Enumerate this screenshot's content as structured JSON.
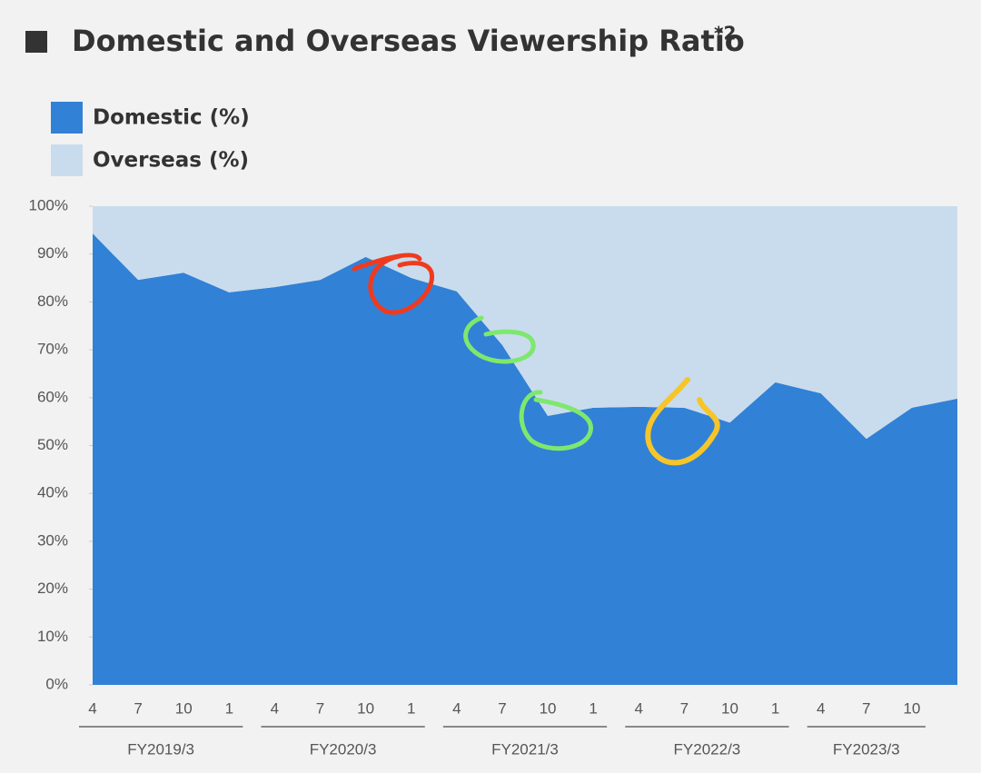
{
  "chart_data": {
    "type": "stacked_area",
    "title": "Domestic and Overseas Viewership Ratio",
    "title_note": "*2",
    "categories": [
      "4",
      "7",
      "10",
      "1",
      "4",
      "7",
      "10",
      "1",
      "4",
      "7",
      "10",
      "1",
      "4",
      "7",
      "10",
      "1",
      "4",
      "7",
      "10",
      null
    ],
    "groups": [
      "FY2019/3",
      "FY2020/3",
      "FY2021/3",
      "FY2022/3",
      "FY2023/3"
    ],
    "series": [
      {
        "name": "Domestic (%)",
        "color": "#3181d6",
        "values": [
          94.3,
          84.6,
          86.1,
          82,
          83.1,
          84.6,
          89.4,
          85,
          82.2,
          71,
          56.2,
          57.9,
          58.1,
          57.9,
          54.8,
          63.2,
          60.9,
          51.4,
          57.9,
          59.8
        ]
      },
      {
        "name": "Overseas (%)",
        "color": "#c9dced",
        "values": [
          5.7,
          15.4,
          13.9,
          18,
          16.9,
          15.4,
          10.6,
          15,
          17.8,
          29,
          43.8,
          42.1,
          41.9,
          42.1,
          45.2,
          36.8,
          39.1,
          48.6,
          42.1,
          40.2
        ]
      }
    ],
    "ylim": [
      0,
      100
    ],
    "yticks": [
      {
        "value": 0,
        "label": "0%"
      },
      {
        "value": 10,
        "label": "10%"
      },
      {
        "value": 20,
        "label": "20%"
      },
      {
        "value": 30,
        "label": "30%"
      },
      {
        "value": 40,
        "label": "40%"
      },
      {
        "value": 50,
        "label": "50%"
      },
      {
        "value": 60,
        "label": "60%"
      },
      {
        "value": 70,
        "label": "70%"
      },
      {
        "value": 80,
        "label": "80%"
      },
      {
        "value": 90,
        "label": "90%"
      },
      {
        "value": 100,
        "label": "100%"
      }
    ]
  }
}
